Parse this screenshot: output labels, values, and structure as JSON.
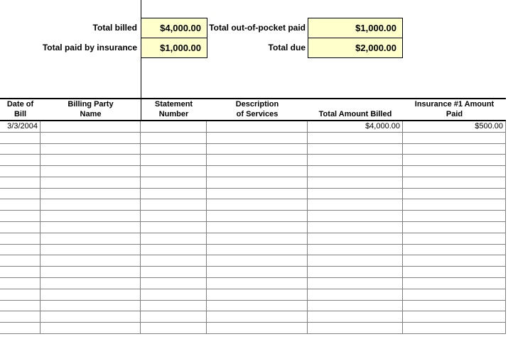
{
  "summary": {
    "items": [
      {
        "label": "Total billed",
        "value": "$4,000.00"
      },
      {
        "label": "Total paid by insurance",
        "value": "$1,000.00"
      },
      {
        "label": "Total out-of-pocket paid",
        "value": "$1,000.00"
      },
      {
        "label": "Total due",
        "value": "$2,000.00"
      }
    ]
  },
  "table": {
    "headers": [
      {
        "line1": "Date of",
        "line2": "Bill"
      },
      {
        "line1": "Billing Party",
        "line2": "Name"
      },
      {
        "line1": "Statement",
        "line2": "Number"
      },
      {
        "line1": "Description",
        "line2": "of Services"
      },
      {
        "line1": "",
        "line2": "Total Amount Billed"
      },
      {
        "line1": "Insurance #1 Amount",
        "line2": "Paid"
      }
    ],
    "rows": [
      [
        "3/3/2004",
        "",
        "",
        "",
        "$4,000.00",
        "$500.00"
      ]
    ],
    "total_row_count": 19
  },
  "colors": {
    "highlight_cell": "#FFFFCC",
    "gridline": "#808080",
    "table_border": "#000000"
  }
}
